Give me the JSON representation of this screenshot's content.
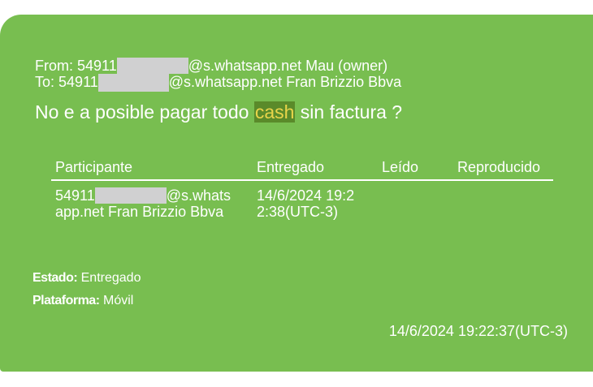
{
  "header": {
    "from_label": "From:",
    "from_prefix": "54911",
    "from_suffix": "@s.whatsapp.net Mau (owner)",
    "to_label": "To:",
    "to_prefix": "54911",
    "to_suffix": "@s.whatsapp.net Fran Brizzio Bbva"
  },
  "message": {
    "before": "No e a posible pagar todo",
    "highlight": "cash",
    "after": "sin factura ?"
  },
  "table": {
    "columns": [
      "Participante",
      "Entregado",
      "Leído",
      "Reproducido"
    ],
    "rows": [
      {
        "participant_prefix": "54911",
        "participant_suffix": "@s.whats app.net Fran Brizzio Bbva",
        "delivered": "14/6/2024 19:22:38(UTC-3)",
        "read": "",
        "played": ""
      }
    ]
  },
  "status": {
    "label": "Estado:",
    "value": "Entregado"
  },
  "platform": {
    "label": "Plataforma:",
    "value": "Móvil"
  },
  "timestamp": "14/6/2024 19:22:37(UTC-3)",
  "colors": {
    "bubble": "#78be50",
    "highlight_bg": "#5a8a2a",
    "highlight_text": "#e8d44a",
    "redaction": "#d0d0d1"
  }
}
